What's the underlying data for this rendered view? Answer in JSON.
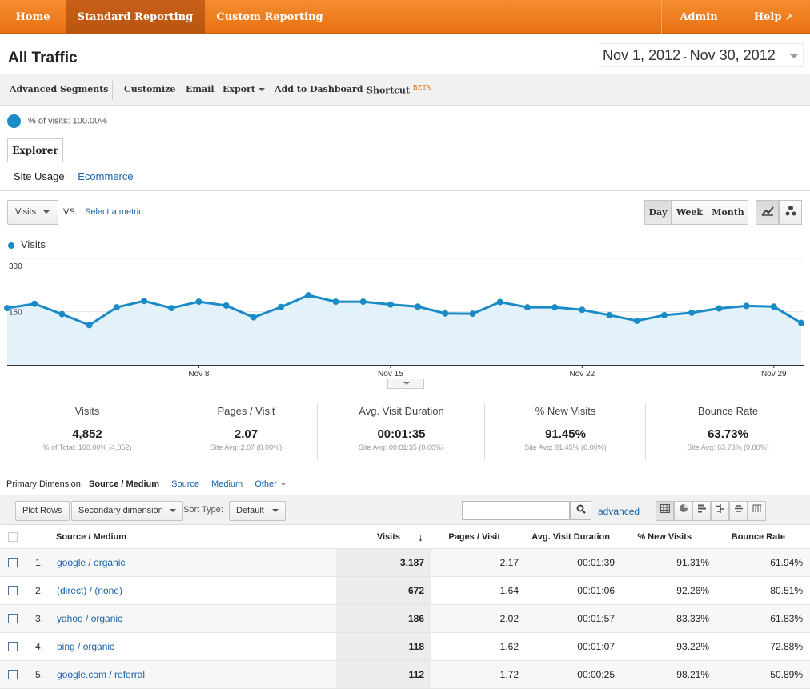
{
  "nav": {
    "home": "Home",
    "standard_reporting": "Standard Reporting",
    "custom_reporting": "Custom Reporting",
    "admin": "Admin",
    "help": "Help"
  },
  "page_title": "All Traffic",
  "date_range": {
    "start": "Nov 1, 2012",
    "sep": " - ",
    "end": "Nov 30, 2012"
  },
  "toolbar": {
    "advanced_segments": "Advanced Segments",
    "customize": "Customize",
    "email": "Email",
    "export": "Export",
    "add_to_dashboard": "Add to Dashboard",
    "shortcut": "Shortcut",
    "beta": "BETA"
  },
  "segment": {
    "label": "% of visits: 100.00%"
  },
  "explorer_tab": "Explorer",
  "subtabs": {
    "site_usage": "Site Usage",
    "ecommerce": "Ecommerce"
  },
  "chart_controls": {
    "metric": "Visits",
    "vs": "VS.",
    "select_metric": "Select a metric",
    "day": "Day",
    "week": "Week",
    "month": "Month"
  },
  "chart_data": {
    "type": "area",
    "series": [
      {
        "name": "Visits",
        "color": "#1a8bc5",
        "values": [
          160,
          172,
          143,
          112,
          162,
          180,
          160,
          178,
          167,
          134,
          163,
          196,
          178,
          178,
          170,
          164,
          145,
          144,
          177,
          162,
          162,
          155,
          140,
          124,
          140,
          147,
          159,
          166,
          164,
          118
        ]
      }
    ],
    "x_tick_labels": [
      {
        "label": "Nov 8",
        "index": 7
      },
      {
        "label": "Nov 15",
        "index": 14
      },
      {
        "label": "Nov 22",
        "index": 21
      },
      {
        "label": "Nov 29",
        "index": 28
      }
    ],
    "y_tick_labels": [
      "300",
      "150"
    ],
    "ylim": [
      0,
      300
    ],
    "grid": true
  },
  "scorecards": [
    {
      "title": "Visits",
      "value": "4,852",
      "sub": "% of Total: 100.00% (4,852)"
    },
    {
      "title": "Pages / Visit",
      "value": "2.07",
      "sub": "Site Avg: 2.07 (0.00%)"
    },
    {
      "title": "Avg. Visit Duration",
      "value": "00:01:35",
      "sub": "Site Avg: 00:01:35 (0.00%)"
    },
    {
      "title": "% New Visits",
      "value": "91.45%",
      "sub": "Site Avg: 91.45% (0.00%)"
    },
    {
      "title": "Bounce Rate",
      "value": "63.73%",
      "sub": "Site Avg: 63.73% (0.00%)"
    }
  ],
  "primary_dimension": {
    "label": "Primary Dimension:",
    "current": "Source / Medium",
    "source": "Source",
    "medium": "Medium",
    "other": "Other"
  },
  "table_tools": {
    "plot_rows": "Plot Rows",
    "secondary_dimension": "Secondary dimension",
    "sort_type_label": "Sort Type:",
    "sort_type": "Default",
    "advanced": "advanced"
  },
  "table": {
    "headers": [
      "Source / Medium",
      "Visits",
      "Pages / Visit",
      "Avg. Visit Duration",
      "% New Visits",
      "Bounce Rate"
    ],
    "rows": [
      {
        "num": "1.",
        "source": "google / organic",
        "visits": "3,187",
        "ppv": "2.17",
        "avd": "00:01:39",
        "nv": "91.31%",
        "br": "61.94%"
      },
      {
        "num": "2.",
        "source": "(direct) / (none)",
        "visits": "672",
        "ppv": "1.64",
        "avd": "00:01:06",
        "nv": "92.26%",
        "br": "80.51%"
      },
      {
        "num": "3.",
        "source": "yahoo / organic",
        "visits": "186",
        "ppv": "2.02",
        "avd": "00:01:57",
        "nv": "83.33%",
        "br": "61.83%"
      },
      {
        "num": "4.",
        "source": "bing / organic",
        "visits": "118",
        "ppv": "1.62",
        "avd": "00:01:07",
        "nv": "93.22%",
        "br": "72.88%"
      },
      {
        "num": "5.",
        "source": "google.com / referral",
        "visits": "112",
        "ppv": "1.72",
        "avd": "00:00:25",
        "nv": "98.21%",
        "br": "50.89%"
      }
    ]
  }
}
